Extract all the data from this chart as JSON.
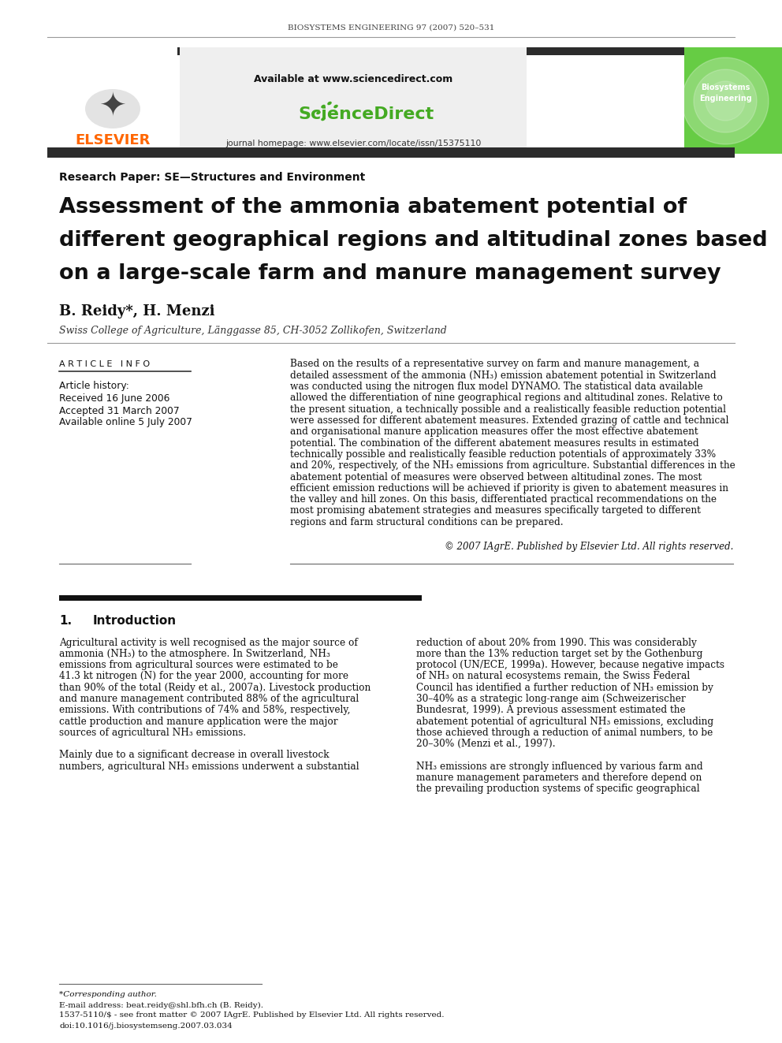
{
  "page_bg": "#ffffff",
  "journal_line": "BIOSYSTEMS ENGINEERING 97 (2007) 520–531",
  "header_bar_color": "#2c2c2c",
  "elsevier_color": "#ff6600",
  "green_sidebar_color": "#66cc44",
  "available_text": "Available at www.sciencedirect.com",
  "journal_homepage": "journal homepage: www.elsevier.com/locate/issn/15375110",
  "section_label": "Research Paper: SE—Structures and Environment",
  "title_line1": "Assessment of the ammonia abatement potential of",
  "title_line2": "different geographical regions and altitudinal zones based",
  "title_line3": "on a large-scale farm and manure management survey",
  "authors": "B. Reidy*, H. Menzi",
  "affiliation": "Swiss College of Agriculture, Länggasse 85, CH-3052 Zollikofen, Switzerland",
  "article_info_label": "A R T I C L E   I N F O",
  "article_history_label": "Article history:",
  "received": "Received 16 June 2006",
  "accepted": "Accepted 31 March 2007",
  "available_online": "Available online 5 July 2007",
  "copyright": "© 2007 IAgrE. Published by Elsevier Ltd. All rights reserved.",
  "section1_number": "1.",
  "section1_title": "Introduction",
  "biosystems_label": "Biosystems\nEngineering",
  "footnote_corresponding": "*Corresponding author.",
  "footnote_email": "E-mail address: beat.reidy@shl.bfh.ch (B. Reidy).",
  "footnote_issn": "1537-5110/$ - see front matter © 2007 IAgrE. Published by Elsevier Ltd. All rights reserved.",
  "footnote_doi": "doi:10.1016/j.biosystemseng.2007.03.034",
  "abstract_lines": [
    "Based on the results of a representative survey on farm and manure management, a",
    "detailed assessment of the ammonia (NH₃) emission abatement potential in Switzerland",
    "was conducted using the nitrogen flux model DYNAMO. The statistical data available",
    "allowed the differentiation of nine geographical regions and altitudinal zones. Relative to",
    "the present situation, a technically possible and a realistically feasible reduction potential",
    "were assessed for different abatement measures. Extended grazing of cattle and technical",
    "and organisational manure application measures offer the most effective abatement",
    "potential. The combination of the different abatement measures results in estimated",
    "technically possible and realistically feasible reduction potentials of approximately 33%",
    "and 20%, respectively, of the NH₃ emissions from agriculture. Substantial differences in the",
    "abatement potential of measures were observed between altitudinal zones. The most",
    "efficient emission reductions will be achieved if priority is given to abatement measures in",
    "the valley and hill zones. On this basis, differentiated practical recommendations on the",
    "most promising abatement strategies and measures specifically targeted to different",
    "regions and farm structural conditions can be prepared."
  ],
  "intro_left_lines": [
    "Agricultural activity is well recognised as the major source of",
    "ammonia (NH₃) to the atmosphere. In Switzerland, NH₃",
    "emissions from agricultural sources were estimated to be",
    "41.3 kt nitrogen (N) for the year 2000, accounting for more",
    "than 90% of the total (Reidy et al., 2007a). Livestock production",
    "and manure management contributed 88% of the agricultural",
    "emissions. With contributions of 74% and 58%, respectively,",
    "cattle production and manure application were the major",
    "sources of agricultural NH₃ emissions.",
    "",
    "Mainly due to a significant decrease in overall livestock",
    "numbers, agricultural NH₃ emissions underwent a substantial"
  ],
  "intro_right_lines": [
    "reduction of about 20% from 1990. This was considerably",
    "more than the 13% reduction target set by the Gothenburg",
    "protocol (UN/ECE, 1999a). However, because negative impacts",
    "of NH₃ on natural ecosystems remain, the Swiss Federal",
    "Council has identified a further reduction of NH₃ emission by",
    "30–40% as a strategic long-range aim (Schweizerischer",
    "Bundesrat, 1999). A previous assessment estimated the",
    "abatement potential of agricultural NH₃ emissions, excluding",
    "those achieved through a reduction of animal numbers, to be",
    "20–30% (Menzi et al., 1997).",
    "",
    "NH₃ emissions are strongly influenced by various farm and",
    "manure management parameters and therefore depend on",
    "the prevailing production systems of specific geographical"
  ]
}
